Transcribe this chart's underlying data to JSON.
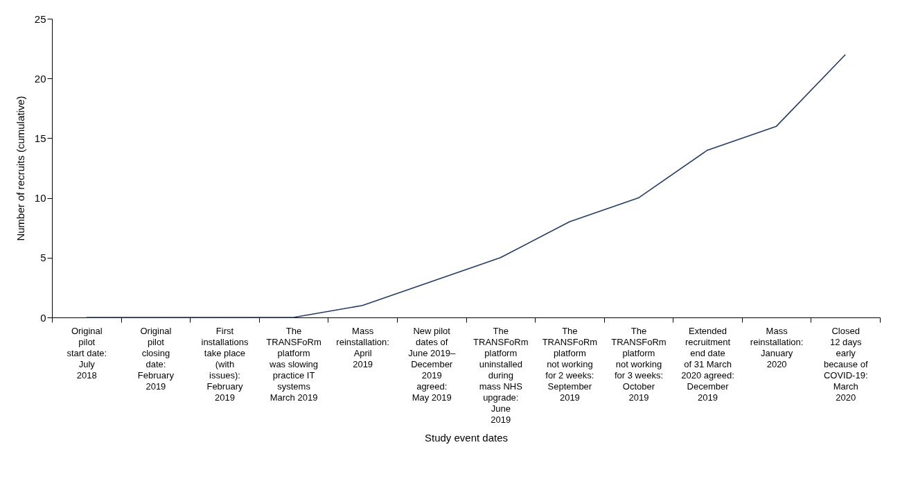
{
  "chart_data": {
    "type": "line",
    "xlabel": "Study event dates",
    "ylabel": "Number of recruits (cumulative)",
    "categories": [
      "Original\npilot\nstart date:\nJuly\n2018",
      "Original\npilot\nclosing\ndate:\nFebruary\n2019",
      "First\ninstallations\ntake place\n(with\nissues):\nFebruary\n2019",
      "The\nTRANSFoRm\nplatform\nwas slowing\npractice IT\nsystems\nMarch 2019",
      "Mass\nreinstallation:\nApril\n2019",
      "New pilot\ndates of\nJune 2019–\nDecember\n2019\nagreed:\nMay 2019",
      "The\nTRANSFoRm\nplatform\nuninstalled\nduring\nmass NHS\nupgrade:\nJune\n2019",
      "The\nTRANSFoRm\nplatform\nnot working\nfor 2 weeks:\nSeptember\n2019",
      "The\nTRANSFoRm\nplatform\nnot working\nfor 3 weeks:\nOctober\n2019",
      "Extended\nrecruitment\nend date\nof 31 March\n2020 agreed:\nDecember\n2019",
      "Mass\nreinstallation:\nJanuary\n2020",
      "Closed\n12 days\nearly\nbecause of\nCOVID-19:\nMarch\n2020"
    ],
    "series": [
      {
        "color": "#1f3a6e",
        "values": [
          0,
          0,
          0,
          0,
          1,
          3,
          5,
          8,
          10,
          14,
          16,
          22
        ]
      }
    ],
    "ylim": [
      0,
      25
    ],
    "yticks": [
      0,
      5,
      10,
      15,
      20,
      25
    ],
    "grid": false,
    "marker": "none",
    "line_style": "solid"
  }
}
